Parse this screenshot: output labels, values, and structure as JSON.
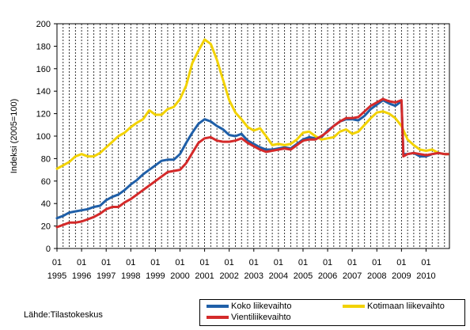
{
  "chart_data": {
    "type": "line",
    "ylabel": "Indeksi (2005=100)",
    "ylim": [
      0,
      200
    ],
    "yticks": [
      0,
      20,
      40,
      60,
      80,
      100,
      120,
      140,
      160,
      180,
      200
    ],
    "x_range": [
      1995.0,
      2010.95
    ],
    "x_month_label": "01",
    "x_year_labels": [
      "1995",
      "1996",
      "1997",
      "1998",
      "1999",
      "2000",
      "2001",
      "2002",
      "2003",
      "2004",
      "2005",
      "2006",
      "2007",
      "2008",
      "2009",
      "2010"
    ],
    "grid": "vertical dashed",
    "legend_position": "bottom-right",
    "series": [
      {
        "name": "Koko liikevaihto",
        "color": "#1f5fa8",
        "points": [
          [
            1995.0,
            27
          ],
          [
            1995.25,
            29
          ],
          [
            1995.5,
            32
          ],
          [
            1995.75,
            33
          ],
          [
            1996.0,
            34
          ],
          [
            1996.25,
            35
          ],
          [
            1996.5,
            37
          ],
          [
            1996.75,
            38
          ],
          [
            1997.0,
            43
          ],
          [
            1997.25,
            46
          ],
          [
            1997.5,
            48
          ],
          [
            1997.75,
            52
          ],
          [
            1998.0,
            57
          ],
          [
            1998.25,
            61
          ],
          [
            1998.5,
            66
          ],
          [
            1998.75,
            70
          ],
          [
            1999.0,
            74
          ],
          [
            1999.25,
            78
          ],
          [
            1999.5,
            79
          ],
          [
            1999.75,
            79
          ],
          [
            2000.0,
            84
          ],
          [
            2000.25,
            94
          ],
          [
            2000.5,
            103
          ],
          [
            2000.75,
            111
          ],
          [
            2001.0,
            115
          ],
          [
            2001.25,
            113
          ],
          [
            2001.5,
            109
          ],
          [
            2001.75,
            106
          ],
          [
            2002.0,
            101
          ],
          [
            2002.25,
            100
          ],
          [
            2002.5,
            102
          ],
          [
            2002.75,
            96
          ],
          [
            2003.0,
            93
          ],
          [
            2003.25,
            90
          ],
          [
            2003.5,
            88
          ],
          [
            2003.75,
            88
          ],
          [
            2004.0,
            89
          ],
          [
            2004.25,
            90
          ],
          [
            2004.5,
            89
          ],
          [
            2004.75,
            93
          ],
          [
            2005.0,
            97
          ],
          [
            2005.25,
            99
          ],
          [
            2005.5,
            98
          ],
          [
            2005.75,
            99
          ],
          [
            2006.0,
            105
          ],
          [
            2006.25,
            109
          ],
          [
            2006.5,
            113
          ],
          [
            2006.75,
            115
          ],
          [
            2007.0,
            115
          ],
          [
            2007.25,
            114
          ],
          [
            2007.5,
            118
          ],
          [
            2007.75,
            124
          ],
          [
            2008.0,
            128
          ],
          [
            2008.25,
            132
          ],
          [
            2008.5,
            129
          ],
          [
            2008.75,
            127
          ],
          [
            2009.0,
            131
          ],
          [
            2009.08,
            84
          ],
          [
            2009.25,
            84
          ],
          [
            2009.5,
            85
          ],
          [
            2009.75,
            82
          ],
          [
            2010.0,
            82
          ],
          [
            2010.25,
            84
          ],
          [
            2010.5,
            85
          ],
          [
            2010.75,
            84
          ],
          [
            2010.9,
            84
          ]
        ]
      },
      {
        "name": "Kotimaan liikevaihto",
        "color": "#f2d200",
        "points": [
          [
            1995.0,
            71
          ],
          [
            1995.25,
            74
          ],
          [
            1995.5,
            77
          ],
          [
            1995.75,
            82
          ],
          [
            1996.0,
            84
          ],
          [
            1996.25,
            82
          ],
          [
            1996.5,
            82
          ],
          [
            1996.75,
            85
          ],
          [
            1997.0,
            90
          ],
          [
            1997.25,
            95
          ],
          [
            1997.5,
            100
          ],
          [
            1997.75,
            103
          ],
          [
            1998.0,
            108
          ],
          [
            1998.25,
            112
          ],
          [
            1998.5,
            115
          ],
          [
            1998.75,
            123
          ],
          [
            1999.0,
            119
          ],
          [
            1999.25,
            119
          ],
          [
            1999.5,
            124
          ],
          [
            1999.75,
            126
          ],
          [
            2000.0,
            133
          ],
          [
            2000.25,
            145
          ],
          [
            2000.5,
            165
          ],
          [
            2000.75,
            176
          ],
          [
            2001.0,
            186
          ],
          [
            2001.25,
            182
          ],
          [
            2001.5,
            168
          ],
          [
            2001.75,
            150
          ],
          [
            2002.0,
            132
          ],
          [
            2002.25,
            121
          ],
          [
            2002.5,
            115
          ],
          [
            2002.75,
            108
          ],
          [
            2003.0,
            105
          ],
          [
            2003.25,
            107
          ],
          [
            2003.5,
            100
          ],
          [
            2003.75,
            92
          ],
          [
            2004.0,
            93
          ],
          [
            2004.25,
            92
          ],
          [
            2004.5,
            93
          ],
          [
            2004.75,
            97
          ],
          [
            2005.0,
            103
          ],
          [
            2005.25,
            104
          ],
          [
            2005.5,
            100
          ],
          [
            2005.75,
            97
          ],
          [
            2006.0,
            98
          ],
          [
            2006.25,
            99
          ],
          [
            2006.5,
            104
          ],
          [
            2006.75,
            106
          ],
          [
            2007.0,
            102
          ],
          [
            2007.25,
            104
          ],
          [
            2007.5,
            110
          ],
          [
            2007.75,
            116
          ],
          [
            2008.0,
            121
          ],
          [
            2008.25,
            122
          ],
          [
            2008.5,
            120
          ],
          [
            2008.75,
            116
          ],
          [
            2009.0,
            109
          ],
          [
            2009.25,
            97
          ],
          [
            2009.5,
            92
          ],
          [
            2009.75,
            88
          ],
          [
            2010.0,
            87
          ],
          [
            2010.25,
            88
          ],
          [
            2010.5,
            85
          ],
          [
            2010.75,
            84
          ],
          [
            2010.9,
            84
          ]
        ]
      },
      {
        "name": "Vientiliikevaihto",
        "color": "#d42a2a",
        "points": [
          [
            1995.0,
            19
          ],
          [
            1995.25,
            21
          ],
          [
            1995.5,
            23
          ],
          [
            1995.75,
            23
          ],
          [
            1996.0,
            24
          ],
          [
            1996.25,
            26
          ],
          [
            1996.5,
            28
          ],
          [
            1996.75,
            31
          ],
          [
            1997.0,
            35
          ],
          [
            1997.25,
            37
          ],
          [
            1997.5,
            37
          ],
          [
            1997.75,
            41
          ],
          [
            1998.0,
            44
          ],
          [
            1998.25,
            48
          ],
          [
            1998.5,
            52
          ],
          [
            1998.75,
            56
          ],
          [
            1999.0,
            60
          ],
          [
            1999.25,
            64
          ],
          [
            1999.5,
            68
          ],
          [
            1999.75,
            69
          ],
          [
            2000.0,
            70
          ],
          [
            2000.25,
            76
          ],
          [
            2000.5,
            85
          ],
          [
            2000.75,
            94
          ],
          [
            2001.0,
            98
          ],
          [
            2001.25,
            99
          ],
          [
            2001.5,
            96
          ],
          [
            2001.75,
            95
          ],
          [
            2002.0,
            95
          ],
          [
            2002.25,
            96
          ],
          [
            2002.5,
            98
          ],
          [
            2002.75,
            94
          ],
          [
            2003.0,
            91
          ],
          [
            2003.25,
            88
          ],
          [
            2003.5,
            86
          ],
          [
            2003.75,
            87
          ],
          [
            2004.0,
            88
          ],
          [
            2004.25,
            89
          ],
          [
            2004.5,
            88
          ],
          [
            2004.75,
            92
          ],
          [
            2005.0,
            96
          ],
          [
            2005.25,
            97
          ],
          [
            2005.5,
            97
          ],
          [
            2005.75,
            100
          ],
          [
            2006.0,
            104
          ],
          [
            2006.25,
            109
          ],
          [
            2006.5,
            113
          ],
          [
            2006.75,
            116
          ],
          [
            2007.0,
            116
          ],
          [
            2007.25,
            117
          ],
          [
            2007.5,
            122
          ],
          [
            2007.75,
            127
          ],
          [
            2008.0,
            130
          ],
          [
            2008.25,
            133
          ],
          [
            2008.5,
            131
          ],
          [
            2008.75,
            130
          ],
          [
            2009.0,
            132
          ],
          [
            2009.08,
            82
          ],
          [
            2009.25,
            84
          ],
          [
            2009.5,
            85
          ],
          [
            2009.75,
            84
          ],
          [
            2010.0,
            83
          ],
          [
            2010.25,
            84
          ],
          [
            2010.5,
            85
          ],
          [
            2010.75,
            84
          ],
          [
            2010.9,
            84
          ]
        ]
      }
    ]
  },
  "source": "Lähde:Tilastokeskus",
  "legend": {
    "koko": "Koko liikevaihto",
    "kotimaan": "Kotimaan liikevaihto",
    "vienti": "Vientiliikevaihto"
  }
}
